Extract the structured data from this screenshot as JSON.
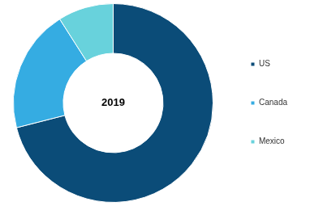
{
  "chart_data": {
    "type": "doughnut",
    "annotations": [
      "2019"
    ],
    "categories": [
      "US",
      "Canada",
      "Mexico"
    ],
    "values": [
      71,
      20,
      9
    ],
    "colors": [
      "#0b4c78",
      "#35ace2",
      "#68d2dc"
    ],
    "legend": "right"
  }
}
